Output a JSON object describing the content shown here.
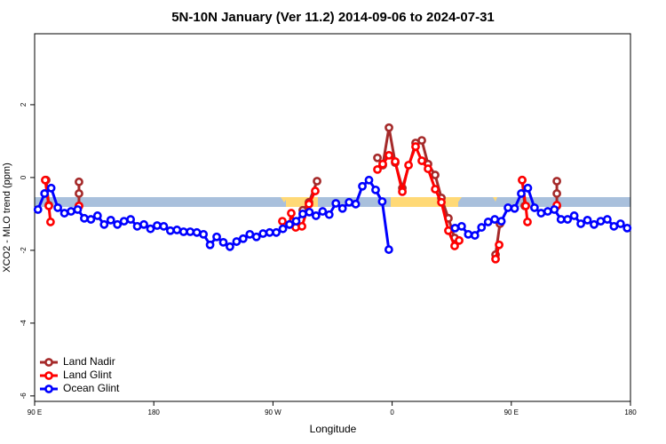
{
  "chart_data": {
    "type": "line",
    "title": "5N-10N January (Ver 11.2)   2014-09-06 to 2024-07-31",
    "xlabel": "Longitude",
    "ylabel": "XCO2 - MLO trend (ppm)",
    "xlim": [
      90,
      540
    ],
    "ylim": [
      -6.15,
      3.95
    ],
    "xticks": [
      {
        "value": 90,
        "label": "90 E"
      },
      180,
      {
        "value": 270,
        "label": "90 W"
      },
      {
        "value": 360,
        "label": "0"
      },
      {
        "value": 450,
        "label": "90 E"
      },
      {
        "value": 540,
        "label": "180"
      }
    ],
    "yticks": [
      2,
      0,
      -2,
      -4,
      -6
    ],
    "legend": "lower left",
    "series": [
      {
        "name": "Land Nadir",
        "color": "#a52a2a",
        "x": [
          98.7,
          100.7,
          110,
          123.5,
          123.5,
          123.5,
          280,
          292.5,
          297.2,
          303.3,
          330,
          348.9,
          352.9,
          357.6,
          362.3,
          367.7,
          377.7,
          382.4,
          387.1,
          392.5,
          397.2,
          402.5,
          407.2,
          420,
          438.1,
          441.4,
          450,
          458.2,
          460.2,
          470,
          484.4,
          484.4,
          484.4
        ],
        "values": [
          -0.07,
          -0.76,
          null,
          -0.12,
          -0.44,
          -0.78,
          null,
          -0.9,
          -0.68,
          -0.1,
          null,
          0.54,
          0.34,
          1.37,
          0.41,
          -0.29,
          0.95,
          1.02,
          0.37,
          0.07,
          -0.56,
          -1.12,
          -1.66,
          null,
          -2.12,
          -1.27,
          null,
          -0.07,
          -0.78,
          null,
          -0.1,
          -0.44,
          -0.78
        ]
      },
      {
        "name": "Land Glint",
        "color": "#ff0000",
        "x": [
          98.0,
          100.7,
          102.0,
          110,
          123.5,
          200,
          277.1,
          282.5,
          283.8,
          287.2,
          291.9,
          297.2,
          301.9,
          330,
          348.9,
          352.9,
          357.6,
          362.3,
          367.7,
          372.4,
          377.7,
          382.4,
          387.1,
          392.5,
          397.2,
          402.5,
          407.2,
          410.6,
          420,
          438.1,
          440.8,
          450,
          458.2,
          460.9,
          462.2,
          470,
          484.4
        ],
        "values": [
          -0.07,
          -0.78,
          -1.22,
          null,
          -0.78,
          null,
          -1.2,
          -1.29,
          -0.98,
          -1.37,
          -1.34,
          -0.73,
          -0.37,
          null,
          0.22,
          0.37,
          0.61,
          0.44,
          -0.39,
          0.34,
          0.85,
          0.46,
          0.24,
          -0.32,
          -0.68,
          -1.46,
          -1.88,
          -1.73,
          null,
          -2.24,
          -1.85,
          null,
          -0.07,
          -0.78,
          -1.22,
          null,
          -0.76
        ]
      },
      {
        "name": "Ocean Glint",
        "color": "#0000ff",
        "x": [
          92.5,
          97.5,
          102.5,
          107.5,
          112.5,
          117.5,
          122.5,
          127.5,
          132.5,
          137.5,
          142.5,
          147.5,
          152.5,
          157.5,
          162.5,
          167.5,
          172.5,
          177.5,
          182.5,
          187.5,
          192.5,
          197.5,
          202.5,
          207.5,
          212.5,
          217.5,
          222.5,
          227.5,
          232.5,
          237.5,
          242.5,
          247.5,
          252.5,
          257.5,
          262.5,
          267.5,
          272.5,
          277.5,
          282.5,
          287.5,
          292.5,
          297.5,
          302.5,
          307.5,
          312.5,
          317.5,
          322.5,
          327.5,
          332.5,
          337.5,
          342.5,
          347.5,
          352.5,
          357.5,
          382.5,
          407.5,
          412.5,
          417.5,
          422.5,
          427.5,
          432.5,
          437.5,
          442.5,
          447.5,
          452.5,
          457.5,
          462.5,
          467.5,
          472.5,
          477.5,
          482.5,
          487.5,
          492.5,
          497.5,
          502.5,
          507.5,
          512.5,
          517.5,
          522.5,
          527.5,
          532.5,
          537.5
        ],
        "values": [
          -0.88,
          -0.44,
          -0.29,
          -0.83,
          -0.98,
          -0.93,
          -0.88,
          -1.12,
          -1.15,
          -1.05,
          -1.29,
          -1.17,
          -1.29,
          -1.2,
          -1.15,
          -1.34,
          -1.29,
          -1.41,
          -1.32,
          -1.34,
          -1.46,
          -1.44,
          -1.49,
          -1.49,
          -1.51,
          -1.56,
          -1.85,
          -1.63,
          -1.78,
          -1.9,
          -1.76,
          -1.68,
          -1.56,
          -1.63,
          -1.54,
          -1.51,
          -1.51,
          -1.41,
          -1.29,
          -1.2,
          -1.0,
          -0.95,
          -1.05,
          -0.93,
          -1.02,
          -0.71,
          -0.85,
          -0.68,
          -0.73,
          -0.24,
          -0.07,
          -0.34,
          -0.66,
          -1.98,
          null,
          -1.39,
          -1.34,
          -1.56,
          -1.59,
          -1.37,
          -1.22,
          -1.15,
          -1.2,
          -0.83,
          -0.85,
          -0.44,
          -0.29,
          -0.83,
          -0.98,
          -0.93,
          -0.88,
          -1.15,
          -1.15,
          -1.05,
          -1.27,
          -1.17,
          -1.29,
          -1.2,
          -1.15,
          -1.34,
          -1.27,
          -1.39
        ]
      }
    ]
  }
}
